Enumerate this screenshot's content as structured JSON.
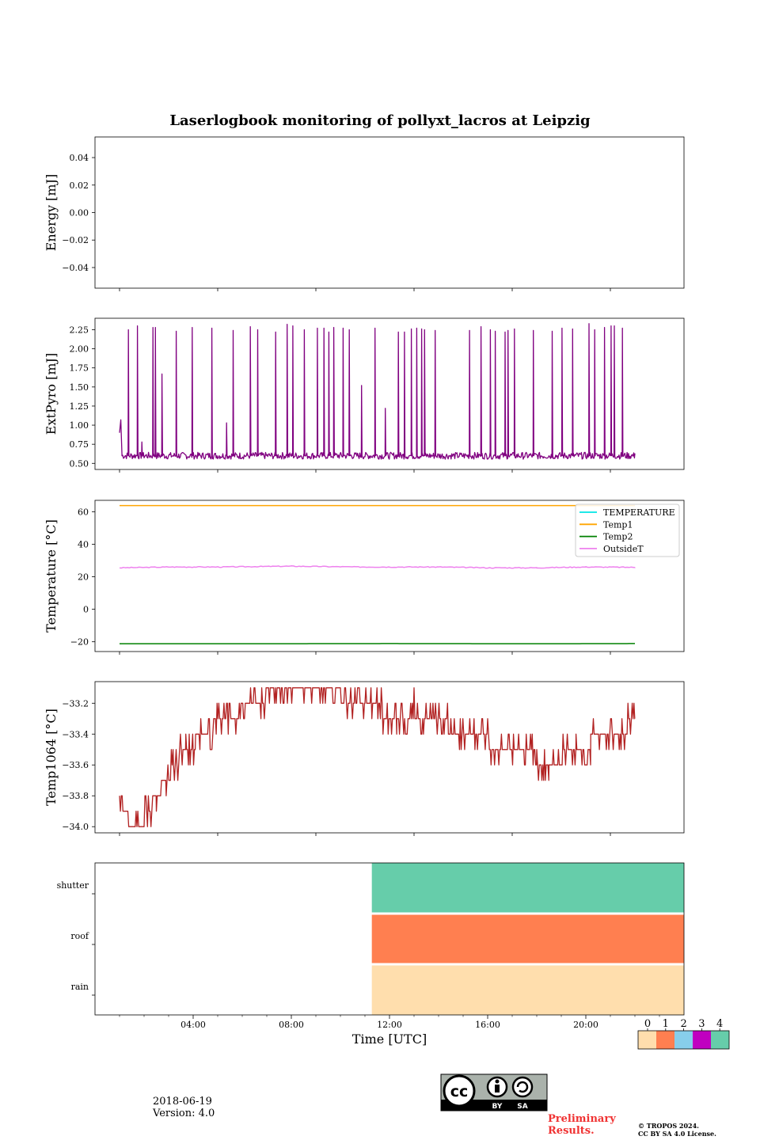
{
  "title": "Laserlogbook monitoring of pollyxt_lacros at Leipzig",
  "date": "2018-06-19",
  "version": "Version: 4.0",
  "preliminary_line1": "Preliminary",
  "preliminary_line2": "Results.",
  "copyright_line1": "© TROPOS 2024.",
  "copyright_line2": "CC BY SA 4.0 License.",
  "license_badge": {
    "by": "BY",
    "sa": "SA",
    "cc": "cc"
  },
  "chart_data": [
    {
      "type": "line",
      "ylabel": "Energy [mJ]",
      "ylim": [
        -0.055,
        0.055
      ],
      "yticks": [
        -0.04,
        -0.02,
        0.0,
        0.02,
        0.04
      ],
      "ytick_labels": [
        "−0.04",
        "−0.02",
        "0.00",
        "0.02",
        "0.04"
      ],
      "series": []
    },
    {
      "type": "line",
      "ylabel": "ExtPyro [mJ]",
      "ylim": [
        0.42,
        2.4
      ],
      "yticks": [
        0.5,
        0.75,
        1.0,
        1.25,
        1.5,
        1.75,
        2.0,
        2.25
      ],
      "ytick_labels": [
        "0.50",
        "0.75",
        "1.00",
        "1.25",
        "1.50",
        "1.75",
        "2.00",
        "2.25"
      ],
      "series": [
        {
          "color": "#800080",
          "baseline": 0.6,
          "start_hours": [
            1.0,
            1.05
          ],
          "start_values": [
            0.9,
            1.07
          ],
          "spike_hours": [
            1.35,
            1.72,
            1.9,
            2.35,
            2.45,
            2.72,
            3.3,
            3.95,
            4.75,
            5.35,
            5.62,
            6.32,
            6.62,
            7.35,
            7.82,
            8.05,
            8.52,
            9.05,
            9.32,
            9.52,
            9.72,
            10.1,
            10.35,
            10.85,
            11.4,
            11.82,
            12.35,
            12.6,
            12.88,
            13.1,
            13.3,
            13.42,
            13.85,
            15.25,
            15.72,
            16.1,
            16.3,
            16.7,
            16.82,
            17.08,
            17.85,
            18.62,
            19.02,
            19.45,
            20.12,
            20.35,
            20.75,
            21.02,
            21.15,
            21.48
          ],
          "spike_values": [
            2.25,
            2.3,
            0.78,
            2.28,
            2.28,
            1.67,
            2.23,
            2.28,
            2.27,
            1.03,
            2.24,
            2.29,
            2.25,
            2.22,
            2.32,
            2.3,
            2.25,
            2.27,
            2.27,
            2.22,
            2.28,
            2.27,
            2.25,
            1.52,
            2.27,
            1.22,
            2.22,
            2.22,
            2.26,
            2.27,
            2.26,
            2.25,
            2.24,
            2.24,
            2.29,
            2.25,
            2.23,
            2.22,
            2.24,
            2.26,
            2.24,
            2.23,
            2.27,
            2.26,
            2.33,
            2.25,
            2.28,
            2.3,
            2.3,
            2.27
          ],
          "end_hour": 22.0,
          "end_value": 0.63
        }
      ]
    },
    {
      "type": "line",
      "ylabel": "Temperature [°C]",
      "ylim": [
        -26,
        67
      ],
      "yticks": [
        -20,
        0,
        20,
        40,
        60
      ],
      "ytick_labels": [
        "−20",
        "0",
        "20",
        "40",
        "60"
      ],
      "legend_position": "upper right",
      "series": [
        {
          "name": "TEMPERATURE",
          "color": "#00e5e5",
          "x": [],
          "y": []
        },
        {
          "name": "Temp1",
          "color": "#ffa500",
          "x": [
            1.0,
            22.0
          ],
          "y": [
            63.8,
            63.8
          ]
        },
        {
          "name": "Temp2",
          "color": "#008000",
          "x": [
            1.0,
            6.0,
            12.0,
            18.0,
            22.0
          ],
          "y": [
            -21.2,
            -21.2,
            -21.1,
            -21.2,
            -21.1
          ]
        },
        {
          "name": "OutsideT",
          "color": "#ee82ee",
          "x": [
            1.0,
            3.0,
            5.0,
            8.0,
            11.0,
            14.0,
            16.0,
            18.0,
            20.0,
            22.0
          ],
          "y": [
            25.5,
            26.0,
            26.0,
            26.5,
            26.0,
            26.0,
            25.5,
            25.5,
            26.0,
            25.8
          ]
        }
      ]
    },
    {
      "type": "line",
      "ylabel": "Temp1064 [°C]",
      "ylim": [
        -34.04,
        -33.06
      ],
      "yticks": [
        -34.0,
        -33.8,
        -33.6,
        -33.4,
        -33.2
      ],
      "ytick_labels": [
        "−34.0",
        "−33.8",
        "−33.6",
        "−33.4",
        "−33.2"
      ],
      "series": [
        {
          "color": "#b22222",
          "x": [
            1.0,
            1.2,
            1.5,
            2.0,
            2.5,
            2.9,
            3.2,
            3.7,
            4.1,
            4.8,
            5.6,
            6.2,
            7.0,
            8.2,
            9.0,
            10.0,
            11.0,
            11.7,
            12.3,
            13.0,
            13.7,
            14.5,
            15.2,
            16.0,
            16.7,
            17.5,
            18.0,
            18.5,
            19.0,
            19.6,
            20.2,
            20.8,
            21.4,
            22.0
          ],
          "y": [
            -33.8,
            -33.9,
            -34.0,
            -33.95,
            -33.8,
            -33.7,
            -33.6,
            -33.5,
            -33.45,
            -33.35,
            -33.3,
            -33.2,
            -33.15,
            -33.15,
            -33.1,
            -33.15,
            -33.2,
            -33.25,
            -33.3,
            -33.25,
            -33.3,
            -33.35,
            -33.4,
            -33.45,
            -33.5,
            -33.5,
            -33.55,
            -33.6,
            -33.55,
            -33.5,
            -33.45,
            -33.4,
            -33.4,
            -33.3
          ]
        }
      ]
    },
    {
      "type": "heatmap",
      "xlabel": "Time [UTC]",
      "xlim": [
        0,
        24
      ],
      "xticks": [
        4,
        8,
        12,
        16,
        20
      ],
      "xtick_labels": [
        "04:00",
        "08:00",
        "12:00",
        "16:00",
        "20:00"
      ],
      "rows": [
        "rain",
        "roof",
        "shutter"
      ],
      "filled_from_hour": 11.28,
      "row_values": [
        0,
        1,
        4
      ],
      "colorbar": {
        "ticks": [
          "0",
          "1",
          "2",
          "3",
          "4"
        ],
        "colors": [
          "#ffdead",
          "#ff7f50",
          "#87ceeb",
          "#c000c0",
          "#66cdaa"
        ]
      }
    }
  ]
}
